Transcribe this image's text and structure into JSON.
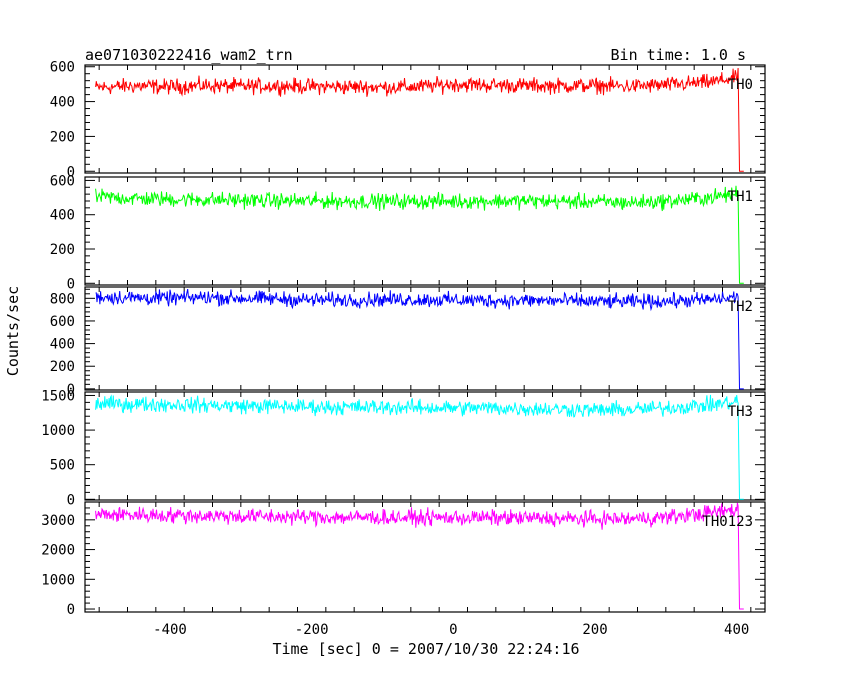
{
  "header": {
    "title": "ae071030222416_wam2_trn",
    "bin_time": "Bin time: 1.0 s"
  },
  "chart_data": {
    "type": "line",
    "xlabel": "Time [sec] 0 = 2007/10/30 22:24:16",
    "ylabel": "Counts/sec",
    "xlim": [
      -520,
      440
    ],
    "x_ticks": [
      -400,
      -200,
      0,
      200,
      400
    ],
    "grid": false,
    "series": [
      {
        "name": "TH0",
        "color": "#ff0000",
        "ylim": [
          -10,
          610
        ],
        "y_ticks": [
          0,
          200,
          400,
          600
        ],
        "points": [
          [
            -505,
            480
          ],
          [
            -450,
            490
          ],
          [
            -400,
            485
          ],
          [
            -350,
            492
          ],
          [
            -300,
            488
          ],
          [
            -250,
            490
          ],
          [
            -200,
            487
          ],
          [
            -150,
            485
          ],
          [
            -100,
            482
          ],
          [
            -50,
            485
          ],
          [
            0,
            500
          ],
          [
            50,
            495
          ],
          [
            100,
            492
          ],
          [
            150,
            490
          ],
          [
            200,
            492
          ],
          [
            250,
            488
          ],
          [
            300,
            495
          ],
          [
            340,
            505
          ],
          [
            370,
            515
          ],
          [
            395,
            535
          ],
          [
            402,
            550
          ],
          [
            404,
            0
          ],
          [
            410,
            0
          ]
        ]
      },
      {
        "name": "TH1",
        "color": "#00ff00",
        "ylim": [
          -10,
          620
        ],
        "y_ticks": [
          0,
          200,
          400,
          600
        ],
        "points": [
          [
            -505,
            505
          ],
          [
            -450,
            495
          ],
          [
            -400,
            490
          ],
          [
            -350,
            488
          ],
          [
            -300,
            485
          ],
          [
            -250,
            482
          ],
          [
            -200,
            480
          ],
          [
            -150,
            478
          ],
          [
            -100,
            478
          ],
          [
            -50,
            478
          ],
          [
            0,
            478
          ],
          [
            50,
            480
          ],
          [
            100,
            480
          ],
          [
            150,
            478
          ],
          [
            200,
            475
          ],
          [
            250,
            470
          ],
          [
            300,
            478
          ],
          [
            340,
            492
          ],
          [
            370,
            505
          ],
          [
            395,
            520
          ],
          [
            402,
            535
          ],
          [
            404,
            0
          ],
          [
            410,
            0
          ]
        ]
      },
      {
        "name": "TH2",
        "color": "#0000ff",
        "ylim": [
          -10,
          900
        ],
        "y_ticks": [
          0,
          200,
          400,
          600,
          800
        ],
        "points": [
          [
            -505,
            815
          ],
          [
            -450,
            805
          ],
          [
            -400,
            800
          ],
          [
            -350,
            810
          ],
          [
            -300,
            800
          ],
          [
            -250,
            795
          ],
          [
            -200,
            785
          ],
          [
            -150,
            785
          ],
          [
            -100,
            790
          ],
          [
            -50,
            788
          ],
          [
            0,
            785
          ],
          [
            50,
            780
          ],
          [
            100,
            780
          ],
          [
            150,
            778
          ],
          [
            200,
            772
          ],
          [
            250,
            770
          ],
          [
            300,
            775
          ],
          [
            340,
            782
          ],
          [
            370,
            792
          ],
          [
            395,
            805
          ],
          [
            402,
            812
          ],
          [
            404,
            0
          ],
          [
            410,
            0
          ]
        ]
      },
      {
        "name": "TH3",
        "color": "#00ffff",
        "ylim": [
          -10,
          1550
        ],
        "y_ticks": [
          0,
          500,
          1000,
          1500
        ],
        "points": [
          [
            -505,
            1380
          ],
          [
            -450,
            1375
          ],
          [
            -400,
            1370
          ],
          [
            -350,
            1360
          ],
          [
            -300,
            1350
          ],
          [
            -250,
            1345
          ],
          [
            -200,
            1335
          ],
          [
            -150,
            1330
          ],
          [
            -100,
            1330
          ],
          [
            -50,
            1325
          ],
          [
            0,
            1320
          ],
          [
            50,
            1320
          ],
          [
            100,
            1310
          ],
          [
            150,
            1300
          ],
          [
            200,
            1290
          ],
          [
            250,
            1295
          ],
          [
            300,
            1320
          ],
          [
            340,
            1345
          ],
          [
            370,
            1370
          ],
          [
            395,
            1400
          ],
          [
            402,
            1420
          ],
          [
            404,
            0
          ],
          [
            410,
            0
          ]
        ]
      },
      {
        "name": "TH0123",
        "color": "#ff00ff",
        "ylim": [
          -100,
          3600
        ],
        "y_ticks": [
          0,
          1000,
          2000,
          3000
        ],
        "points": [
          [
            -505,
            3180
          ],
          [
            -450,
            3170
          ],
          [
            -400,
            3150
          ],
          [
            -350,
            3140
          ],
          [
            -300,
            3120
          ],
          [
            -250,
            3110
          ],
          [
            -200,
            3095
          ],
          [
            -150,
            3085
          ],
          [
            -100,
            3080
          ],
          [
            -50,
            3075
          ],
          [
            0,
            3070
          ],
          [
            50,
            3070
          ],
          [
            100,
            3060
          ],
          [
            150,
            3040
          ],
          [
            200,
            3025
          ],
          [
            250,
            3030
          ],
          [
            300,
            3090
          ],
          [
            340,
            3180
          ],
          [
            370,
            3260
          ],
          [
            395,
            3330
          ],
          [
            402,
            3380
          ],
          [
            404,
            0
          ],
          [
            410,
            0
          ]
        ]
      }
    ]
  }
}
